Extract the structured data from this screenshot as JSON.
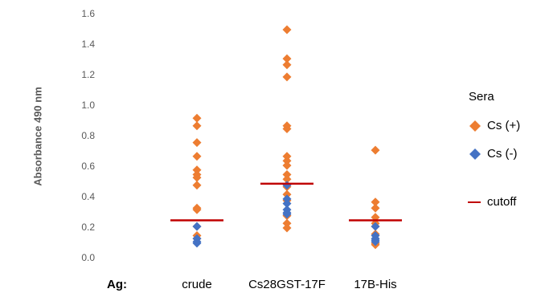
{
  "chart_data": {
    "type": "scatter",
    "y_label": "Absorbance 490 nm",
    "x_label": "Ag:",
    "legend_title": "Sera",
    "legend_position": "right",
    "categories": [
      "crude",
      "Cs28GST-17F",
      "17B-His"
    ],
    "ylim": [
      0,
      1.6
    ],
    "yticks": [
      {
        "value": 0,
        "label": "0.0"
      },
      0.2,
      0.4,
      0.6,
      0.8,
      {
        "value": 1,
        "label": "1.0"
      },
      1.2,
      1.4,
      1.6
    ],
    "series": [
      {
        "name": "Cs (+)",
        "color": "#ed7d31",
        "marker": "diamond",
        "values": [
          [
            0.92,
            0.87,
            0.76,
            0.67,
            0.58,
            0.55,
            0.53,
            0.48,
            0.33,
            0.32,
            0.21,
            0.15,
            0.13
          ],
          [
            1.5,
            1.31,
            1.27,
            1.19,
            0.87,
            0.85,
            0.67,
            0.64,
            0.61,
            0.55,
            0.52,
            0.47,
            0.42,
            0.38,
            0.28,
            0.23,
            0.2
          ],
          [
            0.71,
            0.37,
            0.33,
            0.27,
            0.23,
            0.21,
            0.16,
            0.1,
            0.09
          ]
        ]
      },
      {
        "name": "Cs (-)",
        "color": "#4472c4",
        "marker": "diamond",
        "values": [
          [
            0.21,
            0.13,
            0.11,
            0.1
          ],
          [
            0.48,
            0.39,
            0.36,
            0.32,
            0.3,
            0.29
          ],
          [
            0.21,
            0.15,
            0.13,
            0.12,
            0.11
          ]
        ]
      },
      {
        "name": "cutoff",
        "color": "#c00000",
        "marker": "dash",
        "values": [
          [
            0.25
          ],
          [
            0.49
          ],
          [
            0.25
          ]
        ]
      }
    ]
  }
}
